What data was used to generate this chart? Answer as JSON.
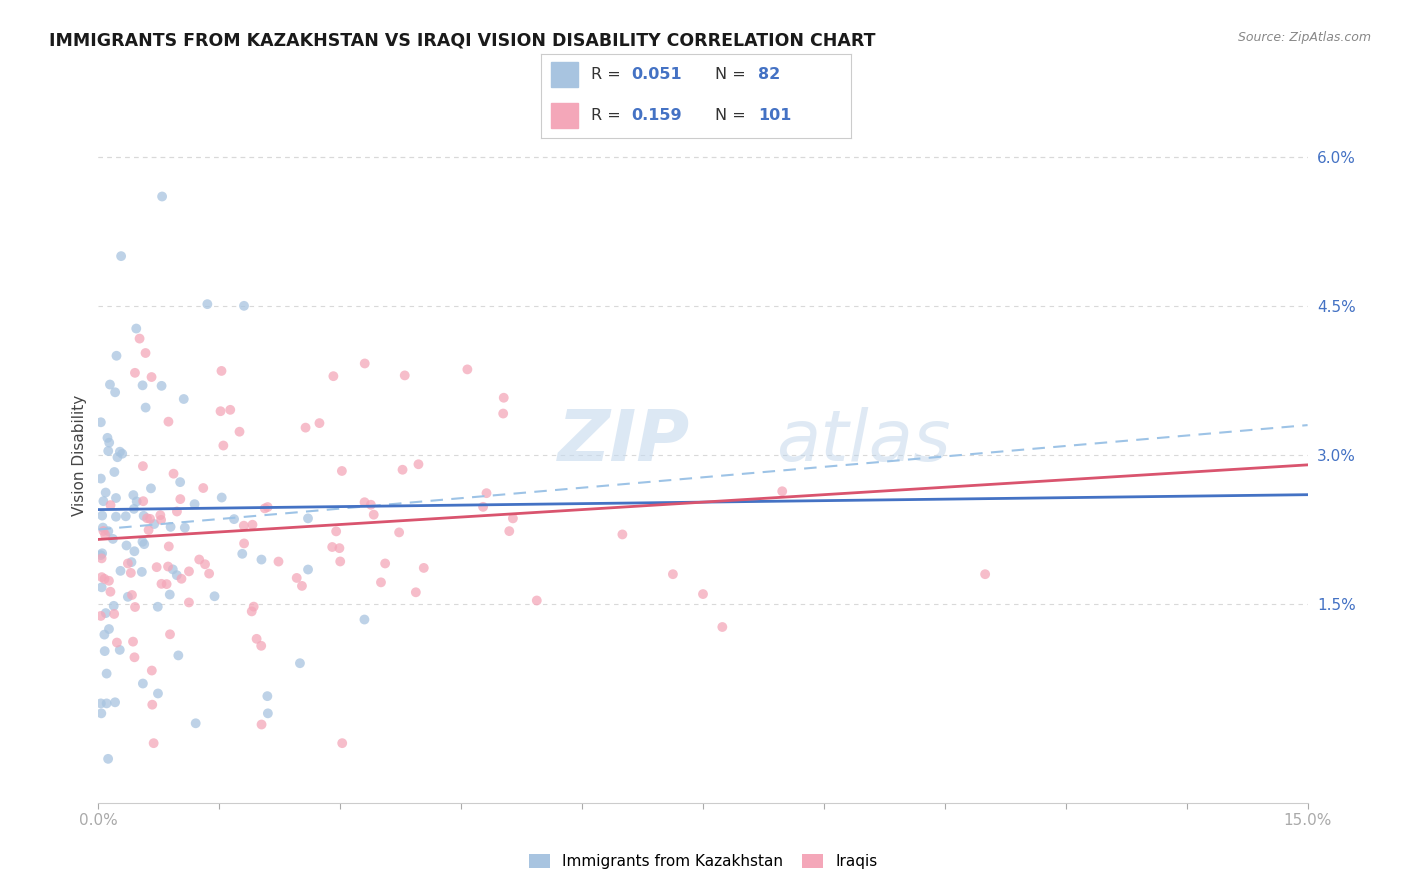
{
  "title": "IMMIGRANTS FROM KAZAKHSTAN VS IRAQI VISION DISABILITY CORRELATION CHART",
  "source": "Source: ZipAtlas.com",
  "ylabel": "Vision Disability",
  "xlim": [
    0.0,
    0.15
  ],
  "ylim": [
    -0.005,
    0.065
  ],
  "yticks_right": [
    0.015,
    0.03,
    0.045,
    0.06
  ],
  "ytick_right_labels": [
    "1.5%",
    "3.0%",
    "4.5%",
    "6.0%"
  ],
  "legend1_R": "0.051",
  "legend1_N": "82",
  "legend2_R": "0.159",
  "legend2_N": "101",
  "color_kaz": "#a8c4e0",
  "color_iraqi": "#f4a7b9",
  "color_kaz_line": "#4472c4",
  "color_iraqi_line": "#d9546e",
  "color_dashed": "#9dc3e6",
  "background_color": "#ffffff",
  "grid_color": "#d9d9d9",
  "watermark_zip": "ZIP",
  "watermark_atlas": "atlas"
}
